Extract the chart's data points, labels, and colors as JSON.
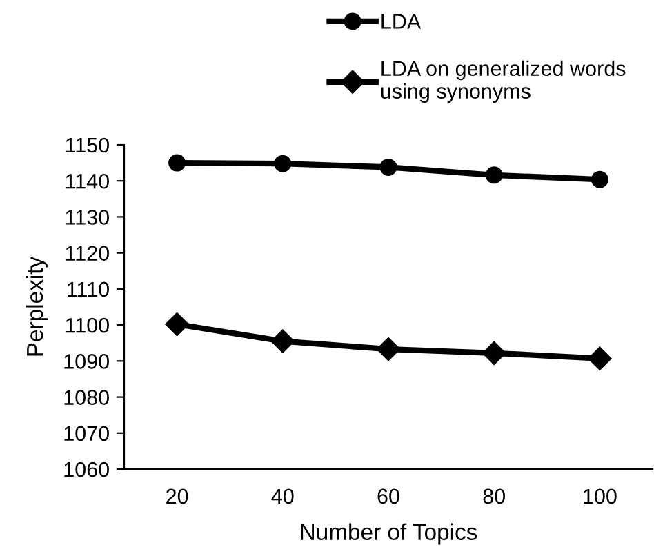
{
  "chart_data": {
    "type": "line",
    "xlabel": "Number of Topics",
    "ylabel": "Perplexity",
    "categories": [
      "20",
      "40",
      "60",
      "80",
      "100"
    ],
    "series": [
      {
        "name": "LDA",
        "color": "#000000",
        "marker": "circle",
        "values": [
          1145,
          1144.8,
          1143.8,
          1141.6,
          1140.4
        ]
      },
      {
        "name": "LDA on generalized words\nusing synonyms",
        "color": "#000000",
        "marker": "diamond",
        "values": [
          1100.2,
          1095.5,
          1093.3,
          1092.2,
          1090.7
        ]
      }
    ],
    "ylim": [
      1060,
      1150
    ],
    "yticks": [
      1060,
      1070,
      1080,
      1090,
      1100,
      1110,
      1120,
      1130,
      1140,
      1150
    ],
    "grid": false,
    "legend": "top",
    "line_style": "solid"
  }
}
